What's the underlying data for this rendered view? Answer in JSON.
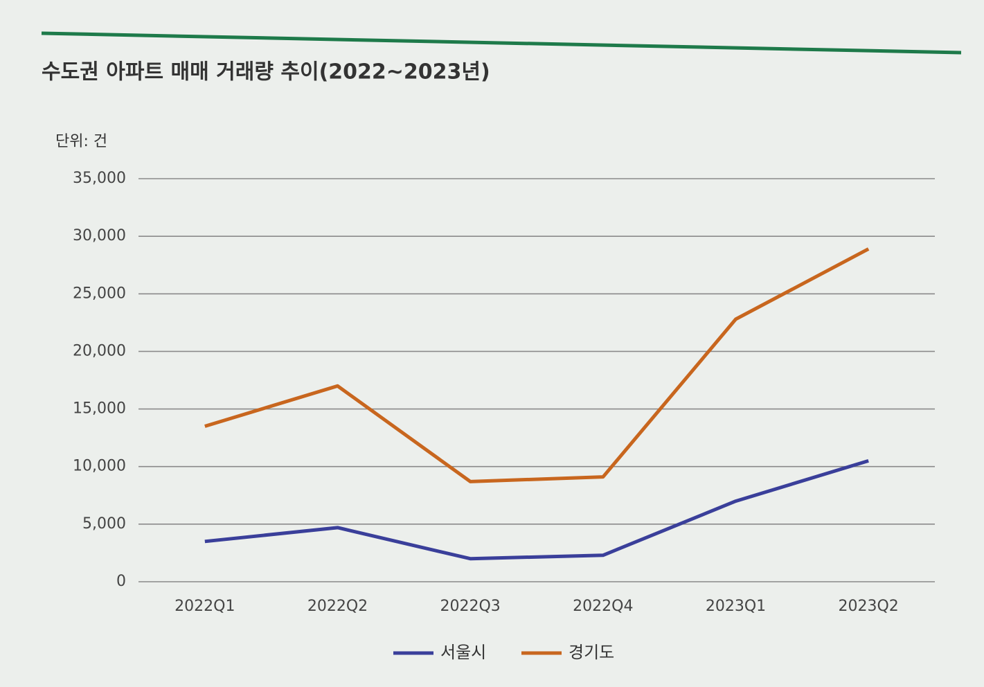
{
  "chart_data": {
    "type": "line",
    "title": "수도권 아파트 매매 거래량 추이(2022~2023년)",
    "unit_label": "단위: 건",
    "categories": [
      "2022Q1",
      "2022Q2",
      "2022Q3",
      "2022Q4",
      "2023Q1",
      "2023Q2"
    ],
    "series": [
      {
        "name": "서울시",
        "color": "#3a3f9a",
        "values": [
          3500,
          4700,
          2000,
          2300,
          7000,
          10500
        ]
      },
      {
        "name": "경기도",
        "color": "#c8661e",
        "values": [
          13500,
          17000,
          8700,
          9100,
          22800,
          28900
        ]
      }
    ],
    "ylim": [
      0,
      35000
    ],
    "yticks": [
      0,
      {
        "value": 5000,
        "label": "5,000"
      },
      {
        "value": 10000,
        "label": "10,000"
      },
      {
        "value": 15000,
        "label": "15,000"
      },
      {
        "value": 20000,
        "label": "20,000"
      },
      {
        "value": 25000,
        "label": "25,000"
      },
      {
        "value": 30000,
        "label": "30,000"
      },
      {
        "value": 35000,
        "label": "35,000"
      }
    ],
    "grid": true,
    "legend": "bottom"
  }
}
